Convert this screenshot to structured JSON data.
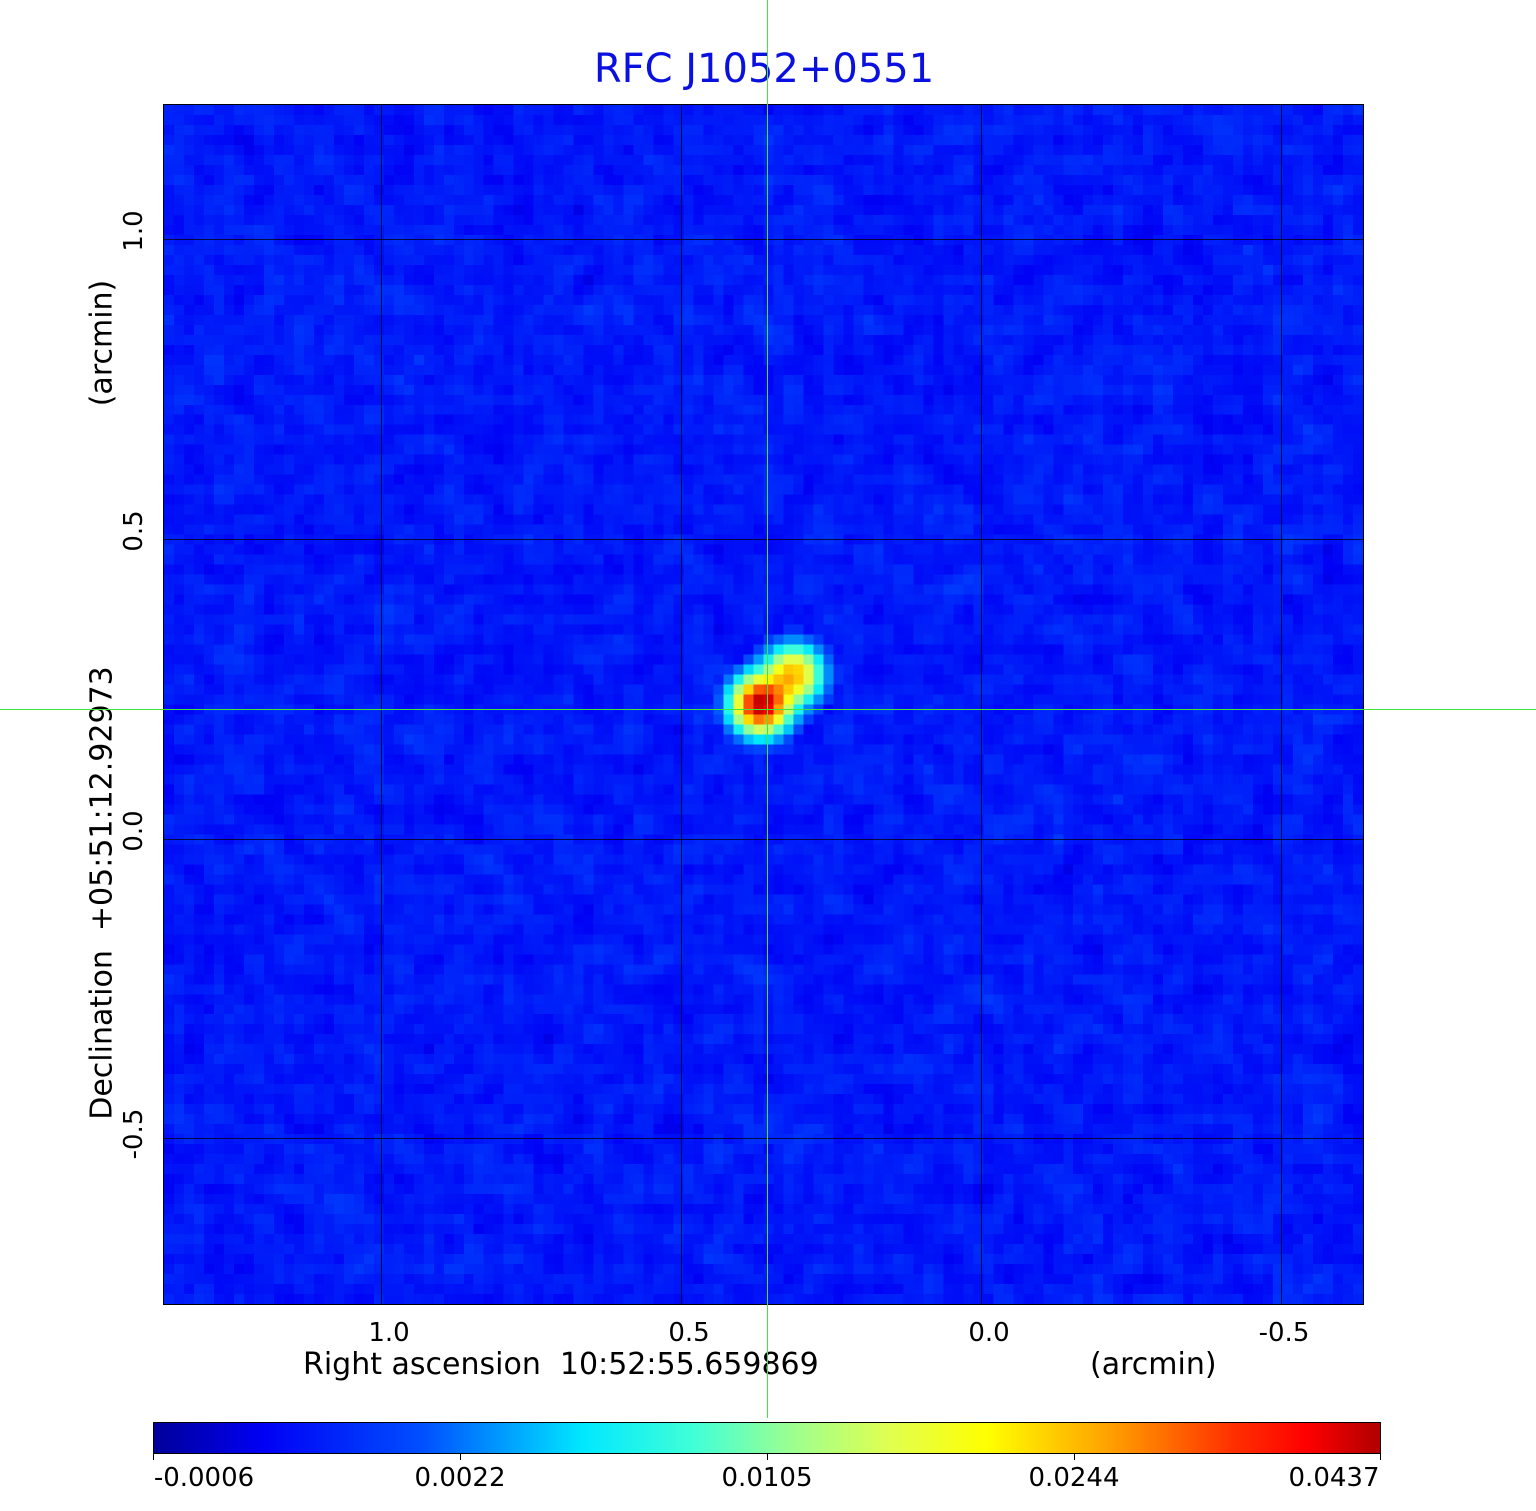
{
  "chart_data": {
    "type": "heatmap",
    "title": "RFC J1052+0551",
    "xlabel": "Right ascension  10:52:55.659869",
    "xunit": "(arcmin)",
    "ylabel": "Declination  +05:51:12.92973",
    "yunit": "(arcmin)",
    "xticks": [
      "1.0",
      "0.5",
      "0.0",
      "-0.5"
    ],
    "xtick_values": [
      1.0,
      0.5,
      0.0,
      -0.5
    ],
    "yticks": [
      "1.0",
      "0.5",
      "0.0",
      "-0.5"
    ],
    "ytick_values": [
      1.0,
      0.5,
      0.0,
      -0.5
    ],
    "xlim": [
      1.36,
      -0.64
    ],
    "ylim": [
      -0.78,
      1.22
    ],
    "grid": true,
    "crosshair": {
      "x": 0.357,
      "y": 0.215,
      "color": "#3ee63e"
    },
    "colormap": "jet",
    "colorbar": {
      "ticks": [
        "-0.0006",
        "0.0022",
        "0.0105",
        "0.0244",
        "0.0437"
      ],
      "range": [
        -0.0006,
        0.0437
      ],
      "placement": "bottom"
    },
    "sources": [
      {
        "x": 0.364,
        "y": 0.22,
        "peak": 0.0437
      },
      {
        "x": 0.31,
        "y": 0.27,
        "peak": 0.024
      }
    ]
  }
}
